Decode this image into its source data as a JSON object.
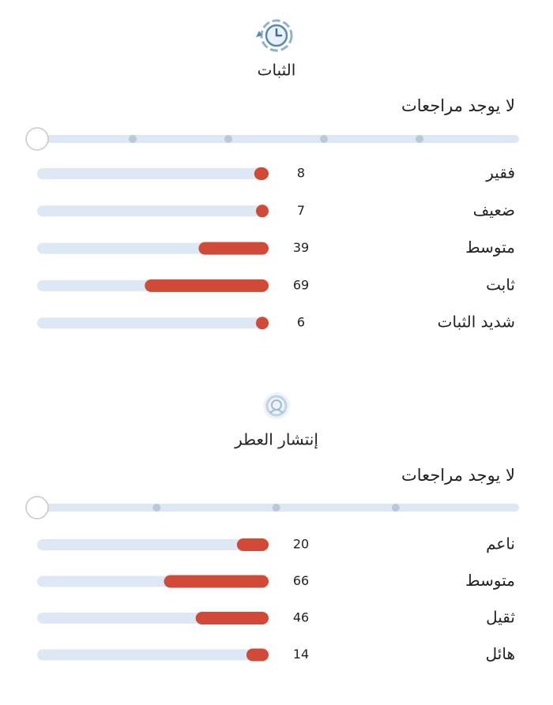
{
  "sections": [
    {
      "title": "الثبات",
      "status": "لا يوجد مراجعات",
      "rows": [
        {
          "label": "فقير",
          "count": 8
        },
        {
          "label": "ضعيف",
          "count": 7
        },
        {
          "label": "متوسط",
          "count": 39
        },
        {
          "label": "ثابت",
          "count": 69
        },
        {
          "label": "شديد الثبات",
          "count": 6
        }
      ]
    },
    {
      "title": "إنتشار العطر",
      "status": "لا يوجد مراجعات",
      "rows": [
        {
          "label": "ناعم",
          "count": 20
        },
        {
          "label": "متوسط",
          "count": 66
        },
        {
          "label": "ثقيل",
          "count": 46
        },
        {
          "label": "هائل",
          "count": 14
        }
      ]
    }
  ]
}
